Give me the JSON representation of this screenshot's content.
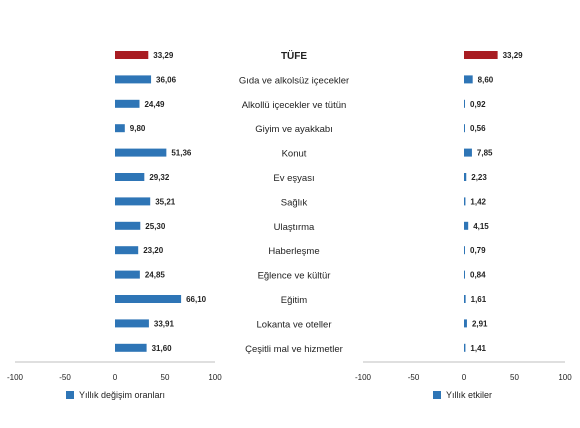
{
  "chart_data": [
    {
      "type": "bar",
      "orientation": "horizontal",
      "categories": [
        "TÜFE",
        "Gıda ve alkolsüz içecekler",
        "Alkollü içecekler ve tütün",
        "Giyim ve ayakkabı",
        "Konut",
        "Ev eşyası",
        "Sağlık",
        "Ulaştırma",
        "Haberleşme",
        "Eğlence ve kültür",
        "Eğitim",
        "Lokanta ve oteller",
        "Çeşitli mal ve hizmetler"
      ],
      "values": [
        33.29,
        36.06,
        24.49,
        9.8,
        51.36,
        29.32,
        35.21,
        25.3,
        23.2,
        24.85,
        66.1,
        33.91,
        31.6
      ],
      "value_labels": [
        "33,29",
        "36,06",
        "24,49",
        "9,80",
        "51,36",
        "29,32",
        "35,21",
        "25,30",
        "23,20",
        "24,85",
        "66,10",
        "33,91",
        "31,60"
      ],
      "series": [
        {
          "name": "Yıllık değişim oranları"
        }
      ],
      "xlim": [
        -100,
        100
      ],
      "x_ticks": [
        "-100",
        "-50",
        "0",
        "50",
        "100"
      ],
      "legend_position": "bottom-left"
    },
    {
      "type": "bar",
      "orientation": "horizontal",
      "categories": [
        "TÜFE",
        "Gıda ve alkolsüz içecekler",
        "Alkollü içecekler ve tütün",
        "Giyim ve ayakkabı",
        "Konut",
        "Ev eşyası",
        "Sağlık",
        "Ulaştırma",
        "Haberleşme",
        "Eğlence ve kültür",
        "Eğitim",
        "Lokanta ve oteller",
        "Çeşitli mal ve hizmetler"
      ],
      "values": [
        33.29,
        8.6,
        0.92,
        0.56,
        7.85,
        2.23,
        1.42,
        4.15,
        0.79,
        0.84,
        1.61,
        2.91,
        1.41
      ],
      "value_labels": [
        "33,29",
        "8,60",
        "0,92",
        "0,56",
        "7,85",
        "2,23",
        "1,42",
        "4,15",
        "0,79",
        "0,84",
        "1,61",
        "2,91",
        "1,41"
      ],
      "series": [
        {
          "name": "Yıllık etkiler"
        }
      ],
      "xlim": [
        -100,
        100
      ],
      "x_ticks": [
        "-100",
        "-50",
        "0",
        "50",
        "100"
      ],
      "legend_position": "bottom-left"
    }
  ],
  "colors": {
    "highlight": "#a81c22",
    "bar": "#2e75b6",
    "axis": "#bfbfbf",
    "text": "#222222"
  }
}
